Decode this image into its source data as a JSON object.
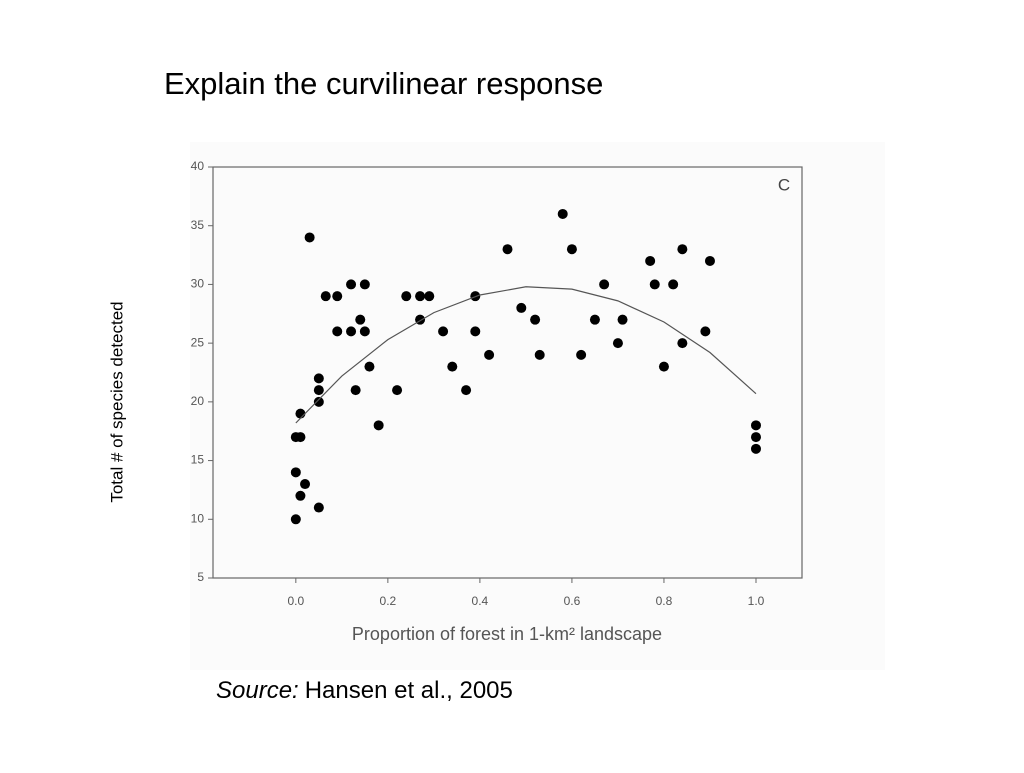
{
  "chart_data": {
    "type": "scatter",
    "title": "Explain the curvilinear response",
    "panel_label": "C",
    "x_label": "Proportion of forest in 1-km² landscape",
    "y_label": "Total # of species detected",
    "source": {
      "label": "Source:",
      "text": "Hansen et al., 2005"
    },
    "color": "#000000",
    "xlim": [
      -0.18,
      1.1
    ],
    "ylim": [
      5,
      40
    ],
    "xticks": [
      {
        "value": 0,
        "label": "0.0"
      },
      {
        "value": 0.2,
        "label": "0.2"
      },
      {
        "value": 0.4,
        "label": "0.4"
      },
      {
        "value": 0.6,
        "label": "0.6"
      },
      {
        "value": 0.8,
        "label": "0.8"
      },
      {
        "value": 1,
        "label": "1.0"
      }
    ],
    "yticks": [
      5,
      10,
      15,
      20,
      25,
      30,
      35,
      40
    ],
    "x": [
      0,
      0,
      0,
      0.01,
      0.01,
      0.01,
      0.02,
      0.03,
      0.05,
      0.05,
      0.05,
      0.05,
      0.065,
      0.09,
      0.09,
      0.12,
      0.12,
      0.13,
      0.14,
      0.15,
      0.15,
      0.16,
      0.18,
      0.22,
      0.24,
      0.27,
      0.27,
      0.29,
      0.32,
      0.34,
      0.37,
      0.39,
      0.39,
      0.42,
      0.46,
      0.49,
      0.52,
      0.53,
      0.58,
      0.6,
      0.62,
      0.65,
      0.67,
      0.7,
      0.71,
      0.77,
      0.78,
      0.8,
      0.82,
      0.84,
      0.84,
      0.89,
      0.9,
      1,
      1,
      1
    ],
    "values": [
      10,
      14,
      17,
      17,
      19,
      12,
      13,
      34,
      11,
      22,
      21,
      20,
      29,
      26,
      29,
      26,
      30,
      21,
      27,
      30,
      26,
      23,
      18,
      21,
      29,
      27,
      29,
      29,
      26,
      23,
      21,
      29,
      26,
      24,
      33,
      28,
      27,
      24,
      36,
      33,
      24,
      27,
      30,
      25,
      27,
      32,
      30,
      23,
      30,
      25,
      33,
      26,
      32,
      18,
      17,
      16
    ],
    "fit": {
      "color": "#555555",
      "x": [
        0,
        0.1,
        0.2,
        0.3,
        0.4,
        0.5,
        0.6,
        0.7,
        0.8,
        0.9,
        1
      ],
      "values": [
        18.2,
        22.2,
        25.3,
        27.6,
        29.1,
        29.8,
        29.6,
        28.6,
        26.8,
        24.2,
        20.7
      ]
    }
  }
}
